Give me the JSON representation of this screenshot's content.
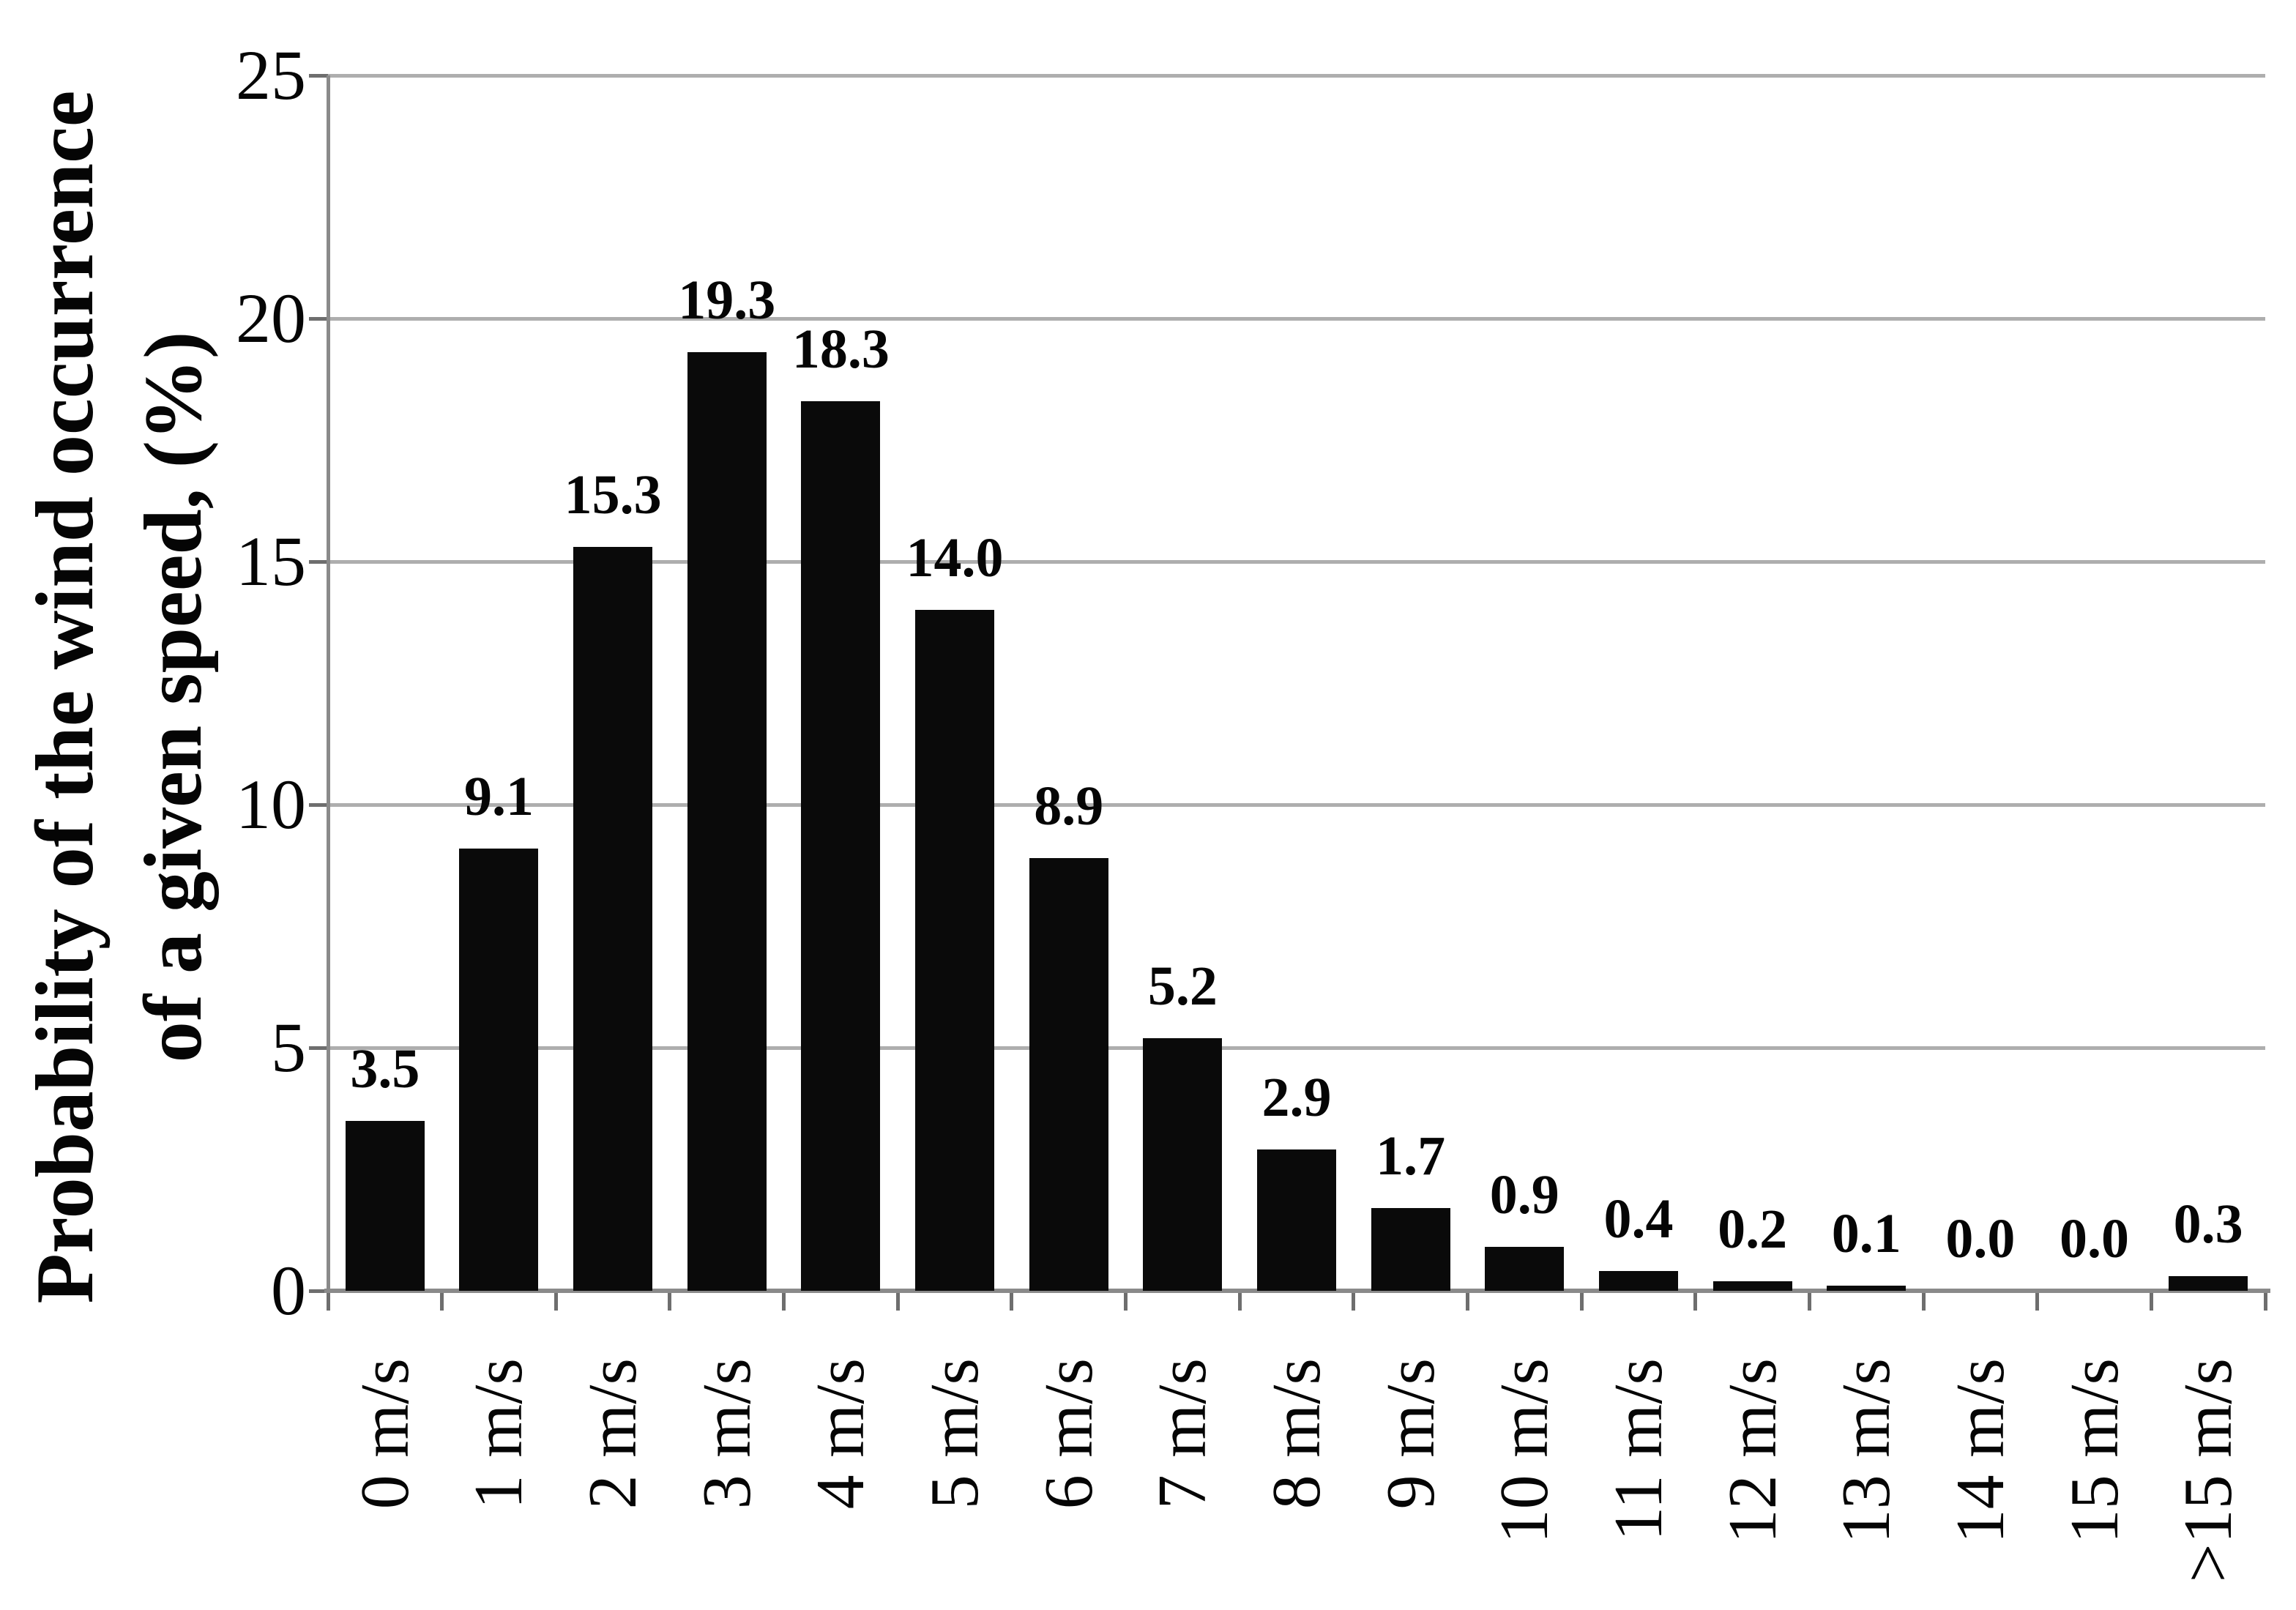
{
  "chart_data": {
    "type": "bar",
    "title": "",
    "xlabel": "",
    "ylabel_lines": [
      "Probability of the wind occurrence",
      "of a given speed, (%)"
    ],
    "categories": [
      "0 m/s",
      "1 m/s",
      "2 m/s",
      "3 m/s",
      "4 m/s",
      "5 m/s",
      "6 m/s",
      "7 m/s",
      "8 m/s",
      "9 m/s",
      "10 m/s",
      "11 m/s",
      "12 m/s",
      "13 m/s",
      "14 m/s",
      "15 m/s",
      ">15 m/s"
    ],
    "values": [
      3.5,
      9.1,
      15.3,
      19.3,
      18.3,
      14.0,
      8.9,
      5.2,
      2.9,
      1.7,
      0.9,
      0.4,
      0.2,
      0.1,
      0.0,
      0.0,
      0.3
    ],
    "bar_value_labels": [
      "3.5",
      "9.1",
      "15.3",
      "19.3",
      "18.3",
      "14.0",
      "8.9",
      "5.2",
      "2.9",
      "1.7",
      "0.9",
      "0.4",
      "0.2",
      "0.1",
      "0.0",
      "0.0",
      "0.3"
    ],
    "ylim": [
      0,
      25
    ],
    "yticks": [
      0,
      5,
      10,
      15,
      20,
      25
    ],
    "grid": true,
    "legend": false,
    "colors": {
      "bar": "#0a0a0a",
      "gridline": "#aeaeae",
      "axis": "#8a8a8a",
      "tick": "#6e6e6e",
      "text": "#050505",
      "background": "#ffffff"
    }
  }
}
